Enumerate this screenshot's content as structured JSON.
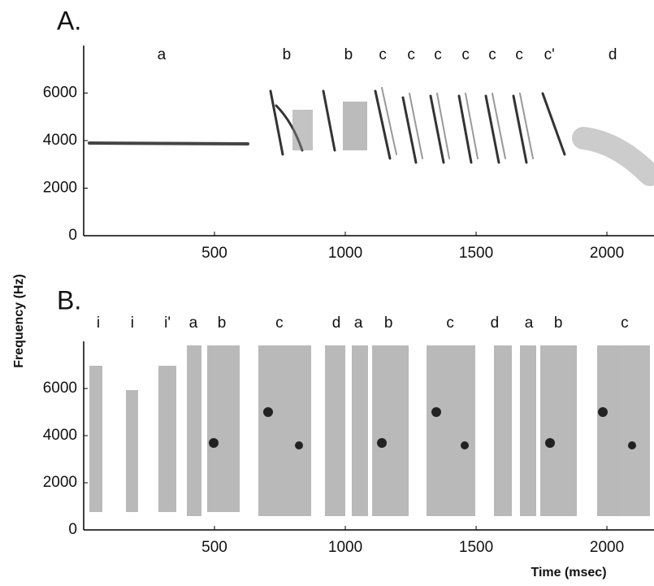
{
  "chart_data": [
    {
      "type": "spectrogram",
      "panel_label": "A.",
      "xlim": [
        0,
        2180
      ],
      "xticks": [
        500,
        1000,
        1500,
        2000
      ],
      "ylim": [
        0,
        8000
      ],
      "yticks": [
        0,
        2000,
        4000,
        6000
      ],
      "annotations": [
        {
          "text": "a",
          "x": 298
        },
        {
          "text": "b",
          "x": 776
        },
        {
          "text": "b",
          "x": 1012
        },
        {
          "text": "c",
          "x": 1143
        },
        {
          "text": "c",
          "x": 1252
        },
        {
          "text": "c",
          "x": 1354
        },
        {
          "text": "c",
          "x": 1460
        },
        {
          "text": "c",
          "x": 1562
        },
        {
          "text": "c",
          "x": 1665
        },
        {
          "text": "c'",
          "x": 1780
        },
        {
          "text": "d",
          "x": 2022
        }
      ]
    },
    {
      "type": "spectrogram",
      "panel_label": "B.",
      "ylabel": "Frequency (Hz)",
      "xlabel": "Time (msec)",
      "xlim": [
        0,
        2180
      ],
      "xticks": [
        500,
        1000,
        1500,
        2000
      ],
      "ylim": [
        0,
        8000
      ],
      "yticks": [
        0,
        2000,
        4000,
        6000
      ],
      "annotations": [
        {
          "text": "i",
          "x": 56
        },
        {
          "text": "i",
          "x": 186
        },
        {
          "text": "i'",
          "x": 320
        },
        {
          "text": "a",
          "x": 419
        },
        {
          "text": "b",
          "x": 528
        },
        {
          "text": "c",
          "x": 748
        },
        {
          "text": "d",
          "x": 966
        },
        {
          "text": "a",
          "x": 1050
        },
        {
          "text": "b",
          "x": 1165
        },
        {
          "text": "c",
          "x": 1401
        },
        {
          "text": "d",
          "x": 1571
        },
        {
          "text": "a",
          "x": 1702
        },
        {
          "text": "b",
          "x": 1814
        },
        {
          "text": "c",
          "x": 2068
        }
      ]
    }
  ]
}
